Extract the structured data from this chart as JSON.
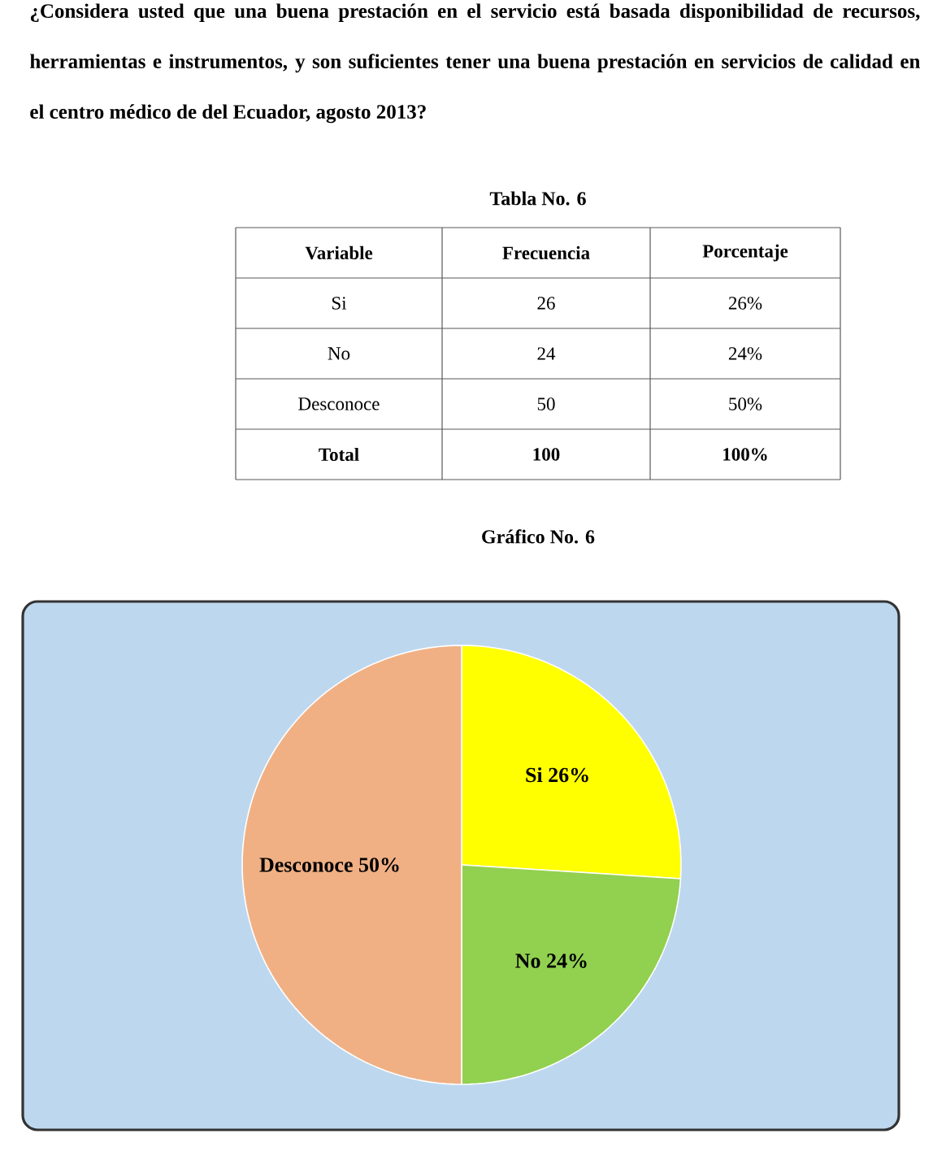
{
  "chart_data": {
    "type": "pie",
    "title": "¿Considera usted que una buena prestación en el servicio está basada disponibilidad de recursos, herramientas e instrumentos, y son suficientes tener una buena prestación en servicios de calidad en el centro médico de del Ecuador, agosto 2013?",
    "categories": [
      "Si",
      "No",
      "Desconoce"
    ],
    "values": [
      26,
      24,
      50
    ],
    "value_labels": [
      "26%",
      "24%",
      "50%"
    ],
    "colors": [
      "#ffff00",
      "#92d050",
      "#f0b084"
    ],
    "annotations": [
      "Tabla No. 6",
      "Variable",
      "Frecuencia",
      "Porcentaje",
      "26",
      "24",
      "50",
      "Total",
      "100",
      "100%",
      "Gráfico No. 6"
    ]
  }
}
